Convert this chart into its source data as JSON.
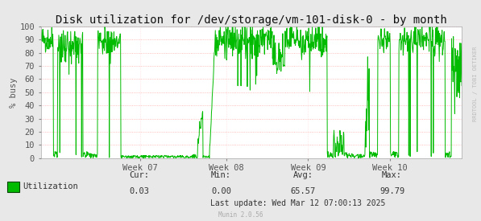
{
  "title": "Disk utilization for /dev/storage/vm-101-disk-0 - by month",
  "ylabel": "% busy",
  "background_color": "#e8e8e8",
  "plot_bg_color": "#ffffff",
  "grid_color": "#ffaaaa",
  "line_color": "#00bb00",
  "yticks": [
    0,
    10,
    20,
    30,
    40,
    50,
    60,
    70,
    80,
    90,
    100
  ],
  "ylim": [
    0,
    100
  ],
  "week_labels": [
    "Week 07",
    "Week 08",
    "Week 09",
    "Week 10"
  ],
  "legend_label": "Utilization",
  "cur_val": "0.03",
  "min_val": "0.00",
  "avg_val": "65.57",
  "max_val": "99.79",
  "last_update": "Last update: Wed Mar 12 07:00:13 2025",
  "munin_version": "Munin 2.0.56",
  "watermark": "RRDTOOL / TOBI OETIKER",
  "title_fontsize": 10,
  "axis_fontsize": 7.5,
  "legend_fontsize": 7.5
}
